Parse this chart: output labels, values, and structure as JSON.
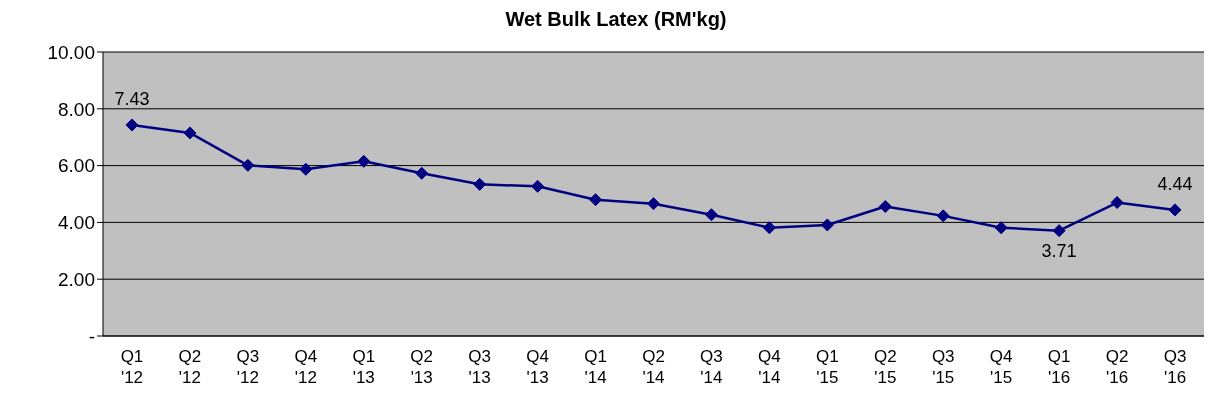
{
  "chart_data": {
    "type": "line",
    "title": "Wet Bulk Latex (RM'kg)",
    "categories": [
      "Q1\n'12",
      "Q2\n'12",
      "Q3\n'12",
      "Q4\n'12",
      "Q1\n'13",
      "Q2\n'13",
      "Q3\n'13",
      "Q4\n'13",
      "Q1\n'14",
      "Q2\n'14",
      "Q3\n'14",
      "Q4\n'14",
      "Q1\n'15",
      "Q2\n'15",
      "Q3\n'15",
      "Q4\n'15",
      "Q1\n'16",
      "Q2\n'16",
      "Q3\n'16"
    ],
    "series": [
      {
        "color": "#000080",
        "values": [
          7.43,
          7.15,
          6.01,
          5.87,
          6.15,
          5.73,
          5.34,
          5.27,
          4.8,
          4.66,
          4.27,
          3.81,
          3.91,
          4.56,
          4.23,
          3.81,
          3.71,
          4.7,
          4.44
        ],
        "value_labels": [
          "7.43",
          null,
          null,
          null,
          null,
          null,
          null,
          null,
          null,
          null,
          null,
          null,
          null,
          null,
          null,
          null,
          "3.71",
          null,
          "4.44"
        ]
      }
    ],
    "ylim": [
      0,
      10
    ],
    "yticks": [
      {
        "value": 0,
        "label": "-"
      },
      {
        "value": 2,
        "label": "2.00"
      },
      {
        "value": 4,
        "label": "4.00"
      },
      {
        "value": 6,
        "label": "6.00"
      },
      {
        "value": 8,
        "label": "8.00"
      },
      {
        "value": 10,
        "label": "10.00"
      }
    ],
    "grid": "y",
    "marker": "diamond",
    "line_style": "solid",
    "legend": false
  }
}
